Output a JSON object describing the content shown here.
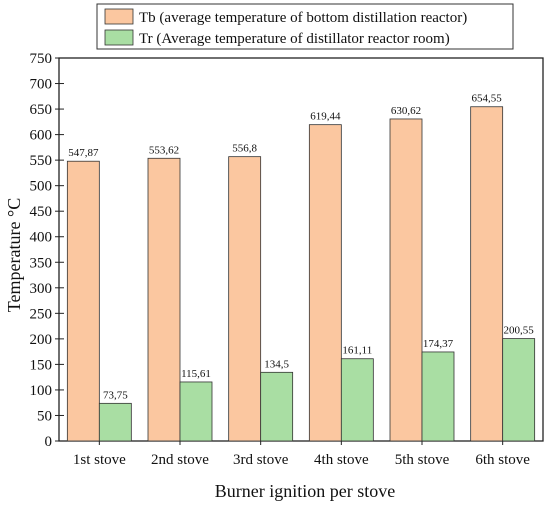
{
  "chart_data": {
    "type": "bar",
    "xlabel": "Burner ignition per stove",
    "ylabel": "Temperature °C",
    "ylim": [
      0,
      750
    ],
    "yticks": [
      0,
      50,
      100,
      150,
      200,
      250,
      300,
      350,
      400,
      450,
      500,
      550,
      600,
      650,
      700,
      750
    ],
    "categories": [
      "1st stove",
      "2nd stove",
      "3rd stove",
      "4th stove",
      "5th stove",
      "6th stove"
    ],
    "series": [
      {
        "name": "Tb (average temperature of bottom distillation reactor)",
        "color": "#fbc7a0",
        "values": [
          547.87,
          553.62,
          556.8,
          619.44,
          630.62,
          654.55
        ],
        "labels": [
          "547,87",
          "553,62",
          "556,8",
          "619,44",
          "630,62",
          "654,55"
        ]
      },
      {
        "name": "Tr (Average temperature of distillator reactor room)",
        "color": "#a9dea3",
        "values": [
          73.75,
          115.61,
          134.5,
          161.11,
          174.37,
          200.55
        ],
        "labels": [
          "73,75",
          "115,61",
          "134,5",
          "161,11",
          "174,37",
          "200,55"
        ]
      }
    ],
    "legend_position": "top-center",
    "grid": false
  }
}
